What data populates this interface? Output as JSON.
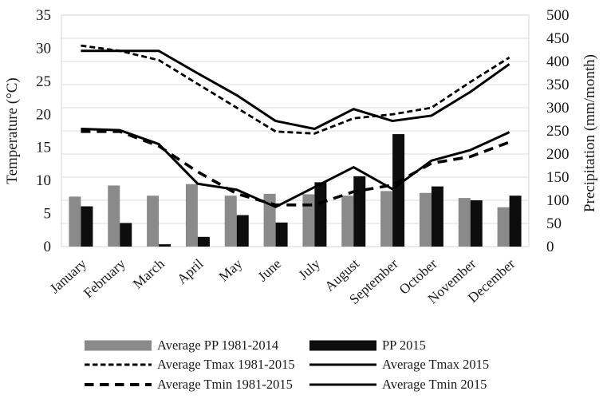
{
  "chart_data": {
    "type": "bar+line combo (climograph)",
    "title": "",
    "categories": [
      "January",
      "February",
      "March",
      "April",
      "May",
      "June",
      "July",
      "August",
      "September",
      "October",
      "November",
      "December"
    ],
    "bar_series": [
      {
        "name": "Average PP 1981-2014",
        "axis": "right",
        "color": "#8a8a8a",
        "values": [
          108,
          132,
          110,
          135,
          110,
          114,
          113,
          110,
          120,
          116,
          105,
          85
        ]
      },
      {
        "name": "PP 2015",
        "axis": "right",
        "color": "#0d0d0d",
        "values": [
          87,
          51,
          5,
          21,
          68,
          52,
          139,
          152,
          243,
          130,
          100,
          110
        ]
      }
    ],
    "line_series": [
      {
        "name": "Average Tmax 1981-2015",
        "axis": "left",
        "style": "short-dash",
        "color": "#000000",
        "values": [
          30.4,
          29.6,
          28.2,
          24.6,
          21.0,
          17.4,
          17.1,
          19.4,
          20.0,
          21.0,
          24.9,
          28.6
        ]
      },
      {
        "name": "Average Tmax 2015",
        "axis": "left",
        "style": "solid",
        "color": "#000000",
        "values": [
          29.6,
          29.6,
          29.6,
          26.2,
          22.9,
          19.0,
          17.8,
          20.8,
          19.0,
          19.8,
          23.4,
          27.6
        ]
      },
      {
        "name": "Average Tmin 1981-2015",
        "axis": "left",
        "style": "long-dash",
        "color": "#000000",
        "values": [
          17.4,
          17.4,
          15.2,
          11.3,
          8.0,
          6.3,
          6.3,
          8.3,
          9.3,
          12.6,
          13.6,
          15.8
        ]
      },
      {
        "name": "Average Tmin 2015",
        "axis": "left",
        "style": "solid",
        "color": "#000000",
        "values": [
          17.8,
          17.6,
          15.5,
          9.5,
          8.6,
          6.0,
          9.0,
          12.0,
          8.7,
          13.0,
          14.6,
          17.3
        ]
      }
    ],
    "axes": {
      "left": {
        "title": "Temperature (°C)",
        "min": 0,
        "max": 35,
        "step": 5,
        "tick_labels": [
          "0",
          "5",
          "10",
          "15",
          "20",
          "25",
          "30",
          "35"
        ]
      },
      "right": {
        "title": "Precipitation (mm/month)",
        "min": 0,
        "max": 500,
        "step": 50,
        "tick_labels": [
          "0",
          "50",
          "100",
          "150",
          "200",
          "250",
          "300",
          "350",
          "400",
          "450",
          "500"
        ]
      }
    },
    "grid": {
      "horizontal": true,
      "vertical": false
    },
    "legend_position": "bottom"
  },
  "legend": {
    "items": [
      {
        "label": "Average PP 1981-2014",
        "marker": "gray-bar"
      },
      {
        "label": "PP 2015",
        "marker": "black-bar"
      },
      {
        "label": "Average Tmax 1981-2015",
        "marker": "short-dash-line"
      },
      {
        "label": "Average Tmax 2015",
        "marker": "solid-line"
      },
      {
        "label": "Average Tmin 1981-2015",
        "marker": "long-dash-line"
      },
      {
        "label": "Average Tmin 2015",
        "marker": "solid-line"
      }
    ]
  },
  "colors": {
    "bar_gray": "#8a8a8a",
    "bar_black": "#0d0d0d",
    "line_black": "#000000",
    "gridline": "#dcdcdc",
    "axis_line": "#a9a9a9",
    "frame": "#d4d4d4",
    "text": "#1a1a1a",
    "background": "#ffffff"
  }
}
